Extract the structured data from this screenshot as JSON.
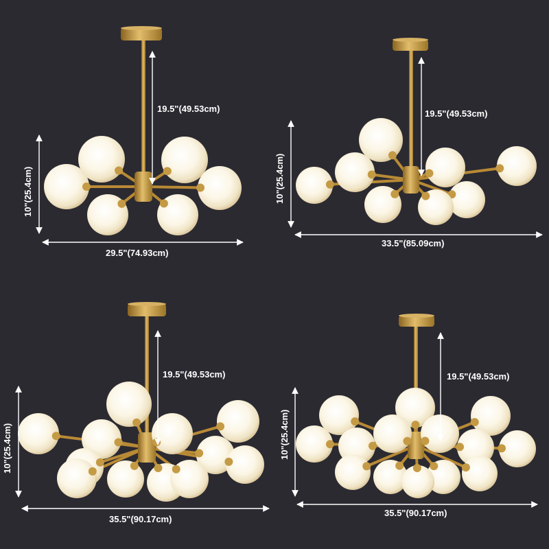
{
  "colors": {
    "background": "#2b2a31",
    "brass": "#c9a04a",
    "globe": "#fbf6e8",
    "dimension_lines": "#ffffff"
  },
  "panels": [
    {
      "drop_label": "19.5\"(49.53cm)",
      "height_label": "10\"(25.4cm)",
      "width_label": "29.5\"(74.93cm)"
    },
    {
      "drop_label": "19.5\"(49.53cm)",
      "height_label": "10\"(25.4cm)",
      "width_label": "33.5\"(85.09cm)"
    },
    {
      "drop_label": "19.5\"(49.53cm)",
      "height_label": "10\"(25.4cm)",
      "width_label": "35.5\"(90.17cm)"
    },
    {
      "drop_label": "19.5\"(49.53cm)",
      "height_label": "10\"(25.4cm)",
      "width_label": "35.5\"(90.17cm)"
    }
  ]
}
